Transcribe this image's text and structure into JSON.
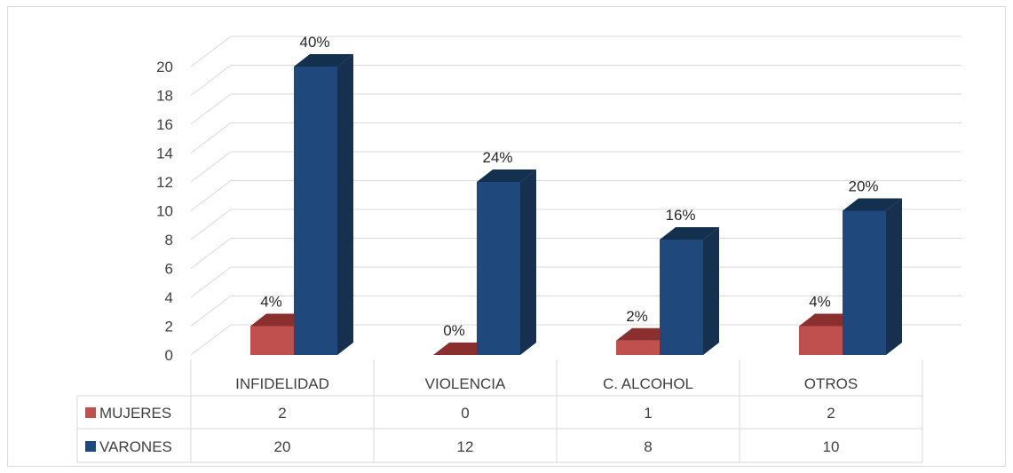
{
  "chart_data": {
    "type": "bar",
    "categories": [
      "INFIDELIDAD",
      "VIOLENCIA",
      "C. ALCOHOL",
      "OTROS"
    ],
    "series": [
      {
        "name": "MUJERES",
        "values": [
          2,
          0,
          1,
          2
        ],
        "labels": [
          "4%",
          "0%",
          "2%",
          "4%"
        ],
        "color": "#c0504d"
      },
      {
        "name": "VARONES",
        "values": [
          20,
          12,
          8,
          10
        ],
        "labels": [
          "40%",
          "24%",
          "16%",
          "20%"
        ],
        "color": "#1f497d"
      }
    ],
    "y_ticks": [
      "0",
      "2",
      "4",
      "6",
      "8",
      "10",
      "12",
      "14",
      "16",
      "18",
      "20"
    ],
    "ylim": [
      0,
      20
    ],
    "grid": true,
    "legend": "data-table",
    "style": "3d-clustered-column"
  }
}
